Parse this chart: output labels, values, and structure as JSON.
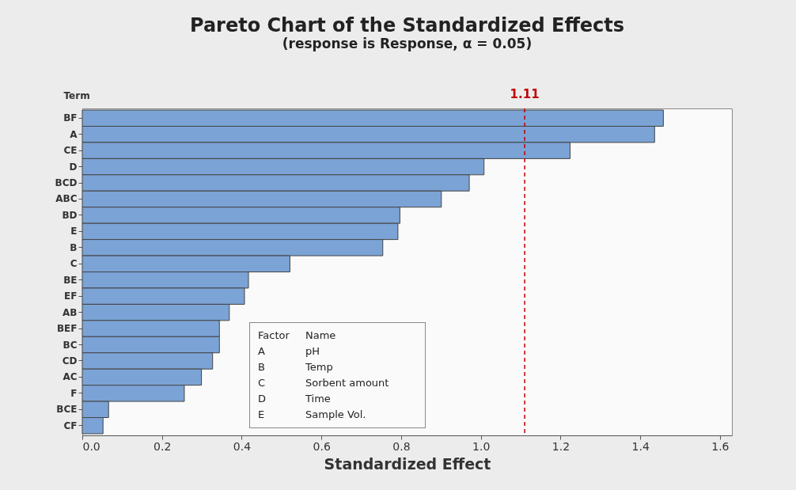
{
  "chart_data": {
    "type": "bar",
    "orientation": "horizontal",
    "title": "Pareto Chart of the Standardized Effects",
    "subtitle": "(response is Response, α = 0.05)",
    "xlabel": "Standardized Effect",
    "ylabel": "Term",
    "categories": [
      "BF",
      "A",
      "CE",
      "D",
      "BCD",
      "ABC",
      "BD",
      "E",
      "B",
      "C",
      "BE",
      "EF",
      "AB",
      "BEF",
      "BC",
      "CD",
      "AC",
      "F",
      "BCE",
      "CF"
    ],
    "values": [
      1.458,
      1.436,
      1.224,
      1.008,
      0.971,
      0.901,
      0.797,
      0.792,
      0.754,
      0.521,
      0.417,
      0.407,
      0.369,
      0.344,
      0.344,
      0.327,
      0.299,
      0.256,
      0.066,
      0.052
    ],
    "color": "#7ba3d6",
    "xlim": [
      0,
      1.63
    ],
    "xticks": [
      {
        "value": 0,
        "label": "0.0"
      },
      0.2,
      0.4,
      0.6,
      0.8,
      {
        "value": 1,
        "label": "1.0"
      },
      1.2,
      1.4,
      1.6
    ],
    "ref_lines": [
      {
        "axis": "x",
        "value": 1.11,
        "label": "1.11",
        "color": "#c00000",
        "line_style": "dashed"
      }
    ],
    "annotations": [
      "Factor",
      "Name",
      "A",
      "pH",
      "B",
      "Temp",
      "C",
      "Sorbent amount",
      "D",
      "Time",
      "E",
      "Sample Vol."
    ],
    "grid": false
  }
}
